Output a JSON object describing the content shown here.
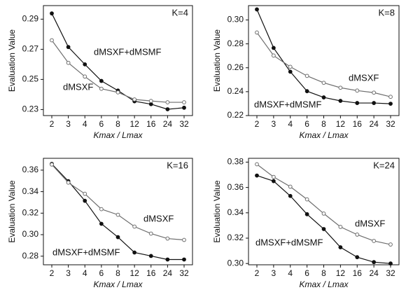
{
  "chart_data": [
    {
      "type": "line",
      "annotation": "K=4",
      "xlabel": "Kmax / Lmax",
      "ylabel": "Evaluation Value",
      "categories": [
        "2",
        "3",
        "4",
        "6",
        "8",
        "12",
        "16",
        "24",
        "32"
      ],
      "ylim": [
        0.226,
        0.299
      ],
      "yticks": [
        0.23,
        0.25,
        0.27,
        0.29
      ],
      "series": [
        {
          "name": "dMSXF+dMSMF",
          "color": "#111111",
          "marker": "filled",
          "values": [
            0.2938,
            0.2715,
            0.26,
            0.249,
            0.2426,
            0.2355,
            0.2336,
            0.2302,
            0.2312
          ]
        },
        {
          "name": "dMSXF",
          "color": "#6e6e6e",
          "marker": "open",
          "values": [
            0.276,
            0.261,
            0.2519,
            0.2438,
            0.2414,
            0.2367,
            0.2357,
            0.2348,
            0.2348
          ]
        }
      ]
    },
    {
      "type": "line",
      "annotation": "K=8",
      "xlabel": "Kmax / Lmax",
      "ylabel": "Evaluation Value",
      "categories": [
        "2",
        "3",
        "4",
        "6",
        "8",
        "12",
        "16",
        "24",
        "32"
      ],
      "ylim": [
        0.22,
        0.312
      ],
      "yticks": [
        0.22,
        0.24,
        0.26,
        0.28,
        {
          "value": 0.3,
          "label": "0.30"
        }
      ],
      "series": [
        {
          "name": "dMSXF+dMSMF",
          "color": "#111111",
          "marker": "filled",
          "values": [
            0.3088,
            0.2766,
            0.2567,
            0.2404,
            0.2352,
            0.2323,
            0.2305,
            0.2305,
            0.2299
          ]
        },
        {
          "name": "dMSXF",
          "color": "#6e6e6e",
          "marker": "open",
          "values": [
            0.2895,
            0.2702,
            0.2608,
            0.2532,
            0.2474,
            0.2433,
            0.2409,
            0.2392,
            0.2357
          ]
        }
      ]
    },
    {
      "type": "line",
      "annotation": "K=16",
      "xlabel": "Kmax / Lmax",
      "ylabel": "Evaluation Value",
      "categories": [
        "2",
        "3",
        "4",
        "6",
        "8",
        "12",
        "16",
        "24",
        "32"
      ],
      "ylim": [
        0.272,
        0.371
      ],
      "yticks": [
        0.28,
        {
          "value": 0.3,
          "label": "0.30"
        },
        0.32,
        0.34,
        0.36
      ],
      "series": [
        {
          "name": "dMSXF+dMSMF",
          "color": "#111111",
          "marker": "filled",
          "values": [
            0.3658,
            0.3497,
            0.3315,
            0.3101,
            0.2977,
            0.2834,
            0.2802,
            0.2769,
            0.2769
          ]
        },
        {
          "name": "dMSXF",
          "color": "#6e6e6e",
          "marker": "open",
          "values": [
            0.3652,
            0.3484,
            0.338,
            0.3237,
            0.3185,
            0.3075,
            0.301,
            0.2964,
            0.2951
          ]
        }
      ]
    },
    {
      "type": "line",
      "annotation": "K=24",
      "xlabel": "Kmax / Lmax",
      "ylabel": "Evaluation Value",
      "categories": [
        "2",
        "3",
        "4",
        "6",
        "8",
        "12",
        "16",
        "24",
        "32"
      ],
      "ylim": [
        0.299,
        0.383
      ],
      "yticks": [
        {
          "value": 0.3,
          "label": "0.30"
        },
        0.32,
        0.34,
        0.36,
        0.38
      ],
      "series": [
        {
          "name": "dMSXF+dMSMF",
          "color": "#111111",
          "marker": "filled",
          "values": [
            0.3694,
            0.365,
            0.3533,
            0.3389,
            0.3272,
            0.3128,
            0.305,
            0.3011,
            0.3
          ]
        },
        {
          "name": "dMSXF",
          "color": "#6e6e6e",
          "marker": "open",
          "values": [
            0.3783,
            0.3683,
            0.3606,
            0.3506,
            0.3394,
            0.3289,
            0.3228,
            0.3178,
            0.315
          ]
        }
      ]
    }
  ]
}
